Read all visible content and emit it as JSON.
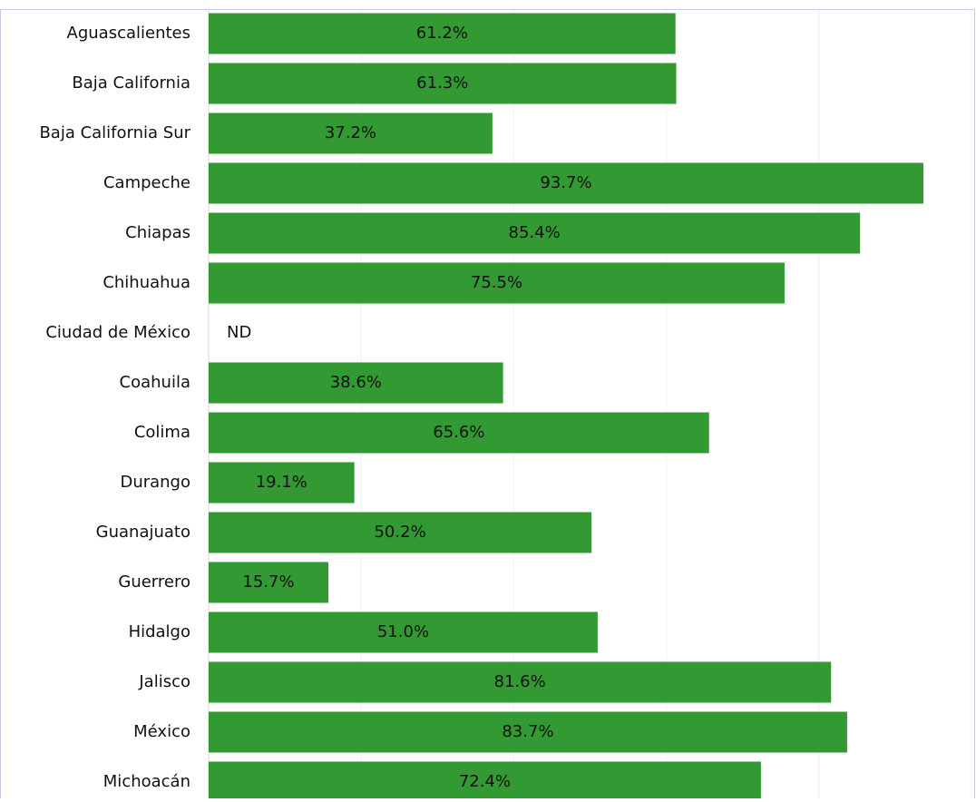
{
  "chart_data": {
    "type": "hbar",
    "categories": [
      "Aguascalientes",
      "Baja California",
      "Baja California Sur",
      "Campeche",
      "Chiapas",
      "Chihuahua",
      "Ciudad de México",
      "Coahuila",
      "Colima",
      "Durango",
      "Guanajuato",
      "Guerrero",
      "Hidalgo",
      "Jalisco",
      "México",
      "Michoacán"
    ],
    "values": [
      61.2,
      61.3,
      37.2,
      93.7,
      85.4,
      75.5,
      null,
      38.6,
      65.6,
      19.1,
      50.2,
      15.7,
      51.0,
      81.6,
      83.7,
      72.4
    ],
    "value_labels": [
      "61.2%",
      "61.3%",
      "37.2%",
      "93.7%",
      "85.4%",
      "75.5%",
      "ND",
      "38.6%",
      "65.6%",
      "19.1%",
      "50.2%",
      "15.7%",
      "51.0%",
      "81.6%",
      "83.7%",
      "72.4%"
    ],
    "color": "#339933",
    "xlim": [
      0,
      100
    ],
    "xticks": [
      0,
      20,
      40,
      60,
      80,
      100
    ],
    "grid": true
  }
}
